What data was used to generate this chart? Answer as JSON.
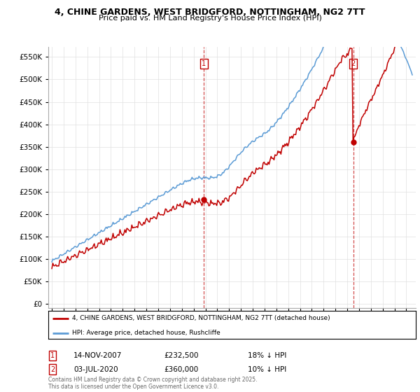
{
  "title": "4, CHINE GARDENS, WEST BRIDGFORD, NOTTINGHAM, NG2 7TT",
  "subtitle": "Price paid vs. HM Land Registry's House Price Index (HPI)",
  "yticks": [
    0,
    50000,
    100000,
    150000,
    200000,
    250000,
    300000,
    350000,
    400000,
    450000,
    500000,
    550000
  ],
  "ytick_labels": [
    "£0",
    "£50K",
    "£100K",
    "£150K",
    "£200K",
    "£250K",
    "£300K",
    "£350K",
    "£400K",
    "£450K",
    "£500K",
    "£550K"
  ],
  "ylim": [
    -8000,
    572000
  ],
  "xlim": [
    1994.7,
    2025.8
  ],
  "hpi_color": "#5b9bd5",
  "price_color": "#c00000",
  "marker1_date": "14-NOV-2007",
  "marker1_price": 232500,
  "marker1_note": "18% ↓ HPI",
  "marker1_year": 2007.88,
  "marker2_date": "03-JUL-2020",
  "marker2_price": 360000,
  "marker2_note": "10% ↓ HPI",
  "marker2_year": 2020.5,
  "legend_line1": "4, CHINE GARDENS, WEST BRIDGFORD, NOTTINGHAM, NG2 7TT (detached house)",
  "legend_line2": "HPI: Average price, detached house, Rushcliffe",
  "footer": "Contains HM Land Registry data © Crown copyright and database right 2025.\nThis data is licensed under the Open Government Licence v3.0.",
  "background_color": "#ffffff",
  "grid_color": "#e0e0e0"
}
